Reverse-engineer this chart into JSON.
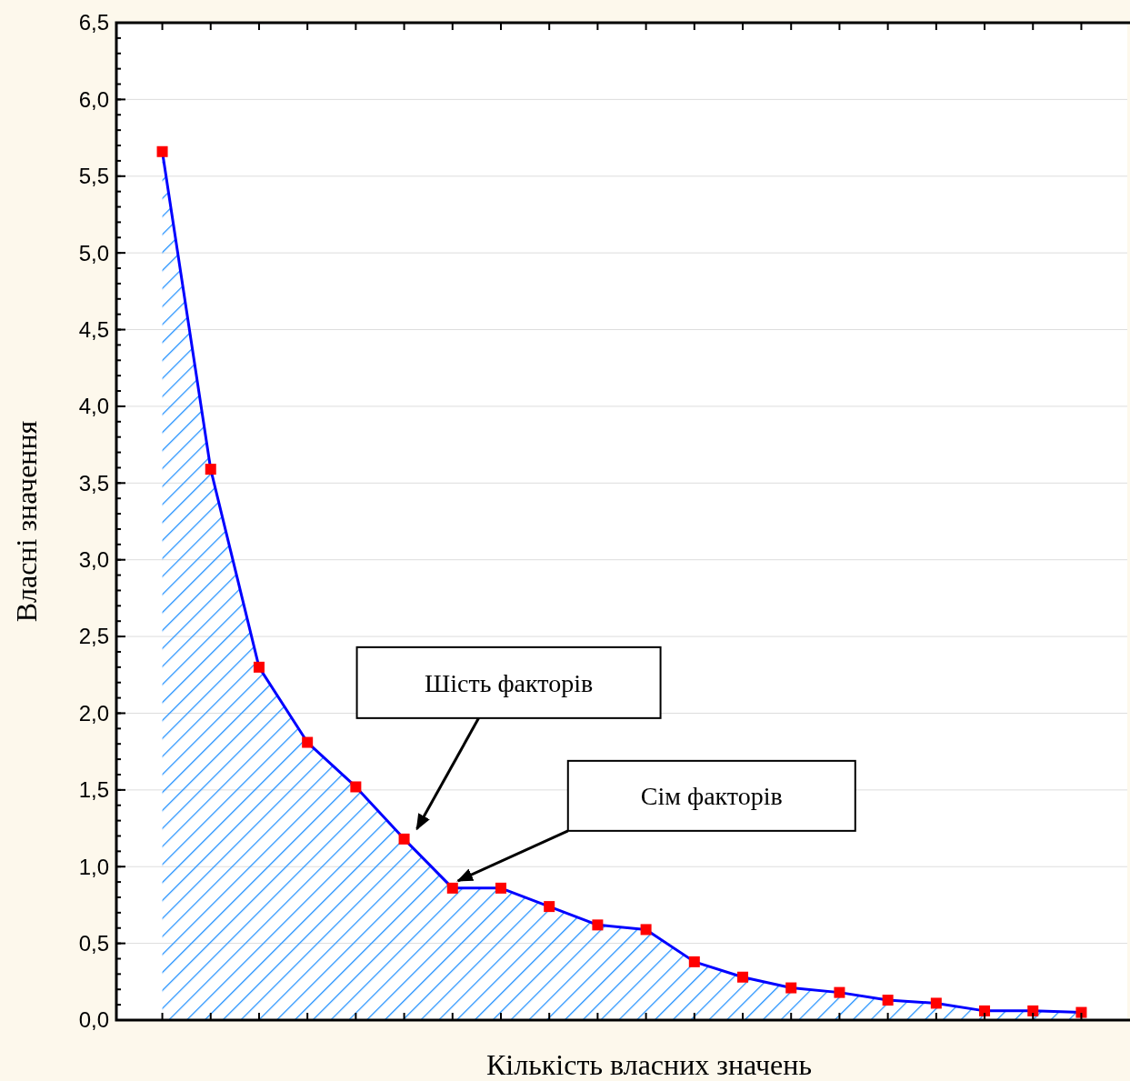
{
  "chart_data": {
    "type": "area",
    "xlabel": "Кількість власних значень",
    "ylabel": "Власні значення",
    "categories": [
      null,
      null,
      null,
      null,
      null,
      null,
      null,
      null,
      null,
      null,
      null,
      null,
      null,
      null,
      null,
      null,
      null,
      null,
      null,
      null
    ],
    "series": [
      {
        "color": "#0000ff",
        "values": [
          5.66,
          3.59,
          2.3,
          1.81,
          1.52,
          1.18,
          0.86,
          0.86,
          0.74,
          0.62,
          0.59,
          0.38,
          0.28,
          0.21,
          0.18,
          0.13,
          0.11,
          0.06,
          0.06,
          0.05
        ]
      }
    ],
    "ylim": [
      0,
      6.5
    ],
    "yticks": [
      {
        "value": 0,
        "label": "0,0"
      },
      {
        "value": 0.5,
        "label": "0,5"
      },
      {
        "value": 1,
        "label": "1,0"
      },
      {
        "value": 1.5,
        "label": "1,5"
      },
      {
        "value": 2,
        "label": "2,0"
      },
      {
        "value": 2.5,
        "label": "2,5"
      },
      {
        "value": 3,
        "label": "3,0"
      },
      {
        "value": 3.5,
        "label": "3,5"
      },
      {
        "value": 4,
        "label": "4,0"
      },
      {
        "value": 4.5,
        "label": "4,5"
      },
      {
        "value": 5,
        "label": "5,0"
      },
      {
        "value": 5.5,
        "label": "5,5"
      },
      {
        "value": 6,
        "label": "6,0"
      },
      {
        "value": 6.5,
        "label": "6,5"
      }
    ],
    "grid": "y",
    "marker": "square",
    "line_style": "solid",
    "annotations": [
      "Шість факторів",
      "Сім факторів"
    ]
  }
}
